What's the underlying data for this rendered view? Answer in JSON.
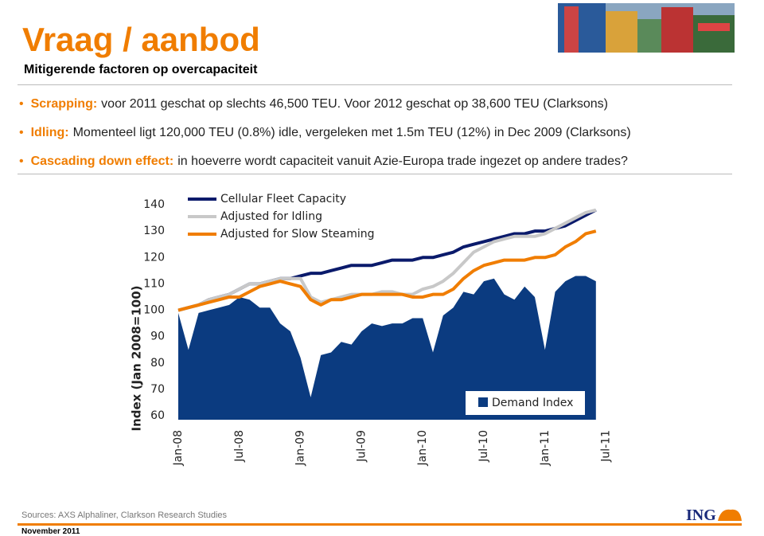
{
  "header": {
    "title": "Vraag / aanbod",
    "subtitle": "Mitigerende factoren op overcapaciteit"
  },
  "bullets": [
    {
      "lead": "Scrapping:",
      "text": "voor 2011 geschat op slechts 46,500 TEU. Voor 2012 geschat op 38,600 TEU (Clarksons)"
    },
    {
      "lead": "Idling:",
      "text": "Momenteel ligt 120,000 TEU (0.8%) idle, vergeleken met 1.5m TEU (12%) in Dec 2009 (Clarksons)"
    },
    {
      "lead": "Cascading down effect:",
      "text": "in hoeverre wordt capaciteit vanuit Azie-Europa trade ingezet op andere trades?"
    }
  ],
  "chart_data": {
    "type": "line",
    "y_label": "Index (Jan 2008=100)",
    "categories": [
      "Jan-08",
      null,
      null,
      null,
      null,
      null,
      "Jul-08",
      null,
      null,
      null,
      null,
      null,
      "Jan-09",
      null,
      null,
      null,
      null,
      null,
      "Jul-09",
      null,
      null,
      null,
      null,
      null,
      "Jan-10",
      null,
      null,
      null,
      null,
      null,
      "Jul-10",
      null,
      null,
      null,
      null,
      null,
      "Jan-11",
      null,
      null,
      null,
      null,
      null,
      "Jul-11"
    ],
    "ylim": [
      58.5,
      142
    ],
    "yticks": [
      60,
      70,
      80,
      90,
      100,
      110,
      120,
      130,
      140
    ],
    "grid": false,
    "series": [
      {
        "name": "Demand Index",
        "type": "area",
        "color": "#0b3b80",
        "values": [
          99,
          85,
          99,
          100,
          101,
          102,
          105,
          104,
          101,
          101,
          95,
          92,
          82,
          67,
          83,
          84,
          88,
          87,
          92,
          95,
          94,
          95,
          95,
          97,
          97,
          84,
          98,
          101,
          107,
          106,
          111,
          112,
          106,
          104,
          109,
          105,
          85,
          107,
          111,
          113,
          113,
          111,
          null
        ]
      },
      {
        "name": "Cellular Fleet Capacity",
        "type": "line",
        "color": "#0a1a6b",
        "values": [
          100,
          101,
          102,
          104,
          105,
          106,
          108,
          110,
          110,
          111,
          112,
          112,
          113,
          114,
          114,
          115,
          116,
          117,
          117,
          117,
          118,
          119,
          119,
          119,
          120,
          120,
          121,
          122,
          124,
          125,
          126,
          127,
          128,
          129,
          129,
          130,
          130,
          131,
          132,
          134,
          136,
          138,
          null
        ]
      },
      {
        "name": "Adjusted for Idling",
        "type": "line",
        "color": "#c8c8c8",
        "values": [
          100,
          101,
          102,
          104,
          105,
          106,
          108,
          110,
          110,
          111,
          112,
          112,
          112,
          105,
          103,
          104,
          105,
          106,
          106,
          106,
          107,
          107,
          106,
          106,
          108,
          109,
          111,
          114,
          118,
          122,
          124,
          126,
          127,
          128,
          128,
          128,
          129,
          131,
          133,
          135,
          137,
          138,
          null
        ]
      },
      {
        "name": "Adjusted for Slow Steaming",
        "type": "line",
        "color": "#f07d00",
        "values": [
          100,
          101,
          102,
          103,
          104,
          105,
          105,
          107,
          109,
          110,
          111,
          110,
          109,
          104,
          102,
          104,
          104,
          105,
          106,
          106,
          106,
          106,
          106,
          105,
          105,
          106,
          106,
          108,
          112,
          115,
          117,
          118,
          119,
          119,
          119,
          120,
          120,
          121,
          124,
          126,
          129,
          130,
          null
        ]
      }
    ]
  },
  "footer": {
    "sources": "Sources:  AXS Alphaliner, Clarkson Research Studies",
    "date": "November 2011",
    "logo": "ING"
  }
}
